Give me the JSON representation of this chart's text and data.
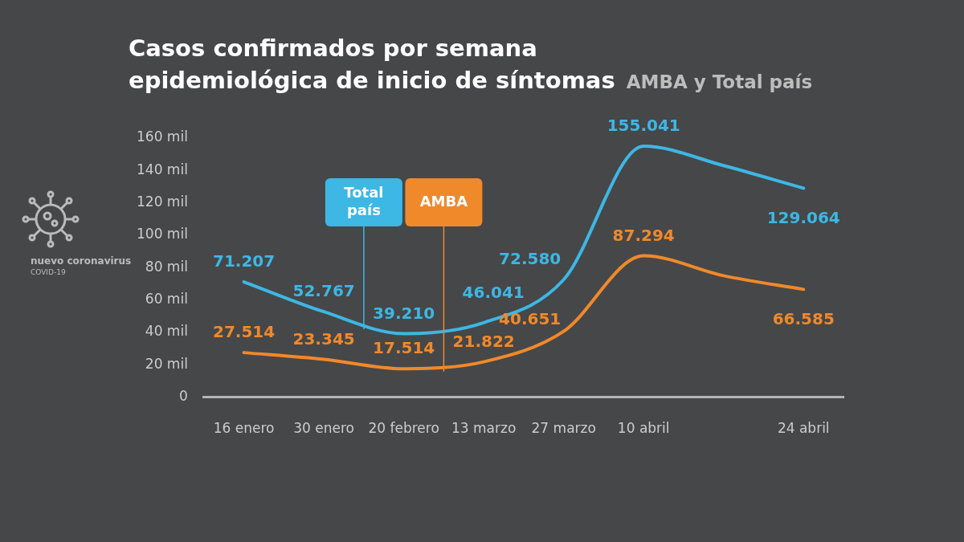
{
  "chart_data": {
    "type": "line",
    "title": "Casos confirmados por semana\nepidemiológica de inicio de síntomas",
    "subtitle": "AMBA y Total país",
    "categories": [
      "16 enero",
      "30 enero",
      "20 febrero",
      "13 marzo",
      "27 marzo",
      "10 abril",
      null,
      "24 abril"
    ],
    "series": [
      {
        "name": "Total país",
        "color": "#3db7e4",
        "values": [
          71.207,
          52.767,
          39.21,
          46.041,
          72.58,
          155.041,
          143,
          129.064
        ],
        "value_labels": [
          "71.207",
          "52.767",
          "39.210",
          "46.041",
          "72.580",
          "155.041",
          null,
          "129.064"
        ]
      },
      {
        "name": "AMBA",
        "color": "#f0892a",
        "values": [
          27.514,
          23.345,
          17.514,
          21.822,
          40.651,
          87.294,
          75,
          66.585
        ],
        "value_labels": [
          "27.514",
          "23.345",
          "17.514",
          "21.822",
          "40.651",
          "87.294",
          null,
          "66.585"
        ]
      }
    ],
    "ylim": [
      0,
      160
    ],
    "yticks": [
      0,
      {
        "value": 20,
        "label": "20 mil"
      },
      {
        "value": 40,
        "label": "40 mil"
      },
      {
        "value": 60,
        "label": "60 mil"
      },
      {
        "value": 80,
        "label": "80 mil"
      },
      {
        "value": 100,
        "label": "100 mil"
      },
      {
        "value": 120,
        "label": "120 mil"
      },
      {
        "value": 140,
        "label": "140 mil"
      },
      {
        "value": 160,
        "label": "160 mil"
      }
    ],
    "grid": false,
    "legend": false,
    "marker": "none",
    "line_style": "solid",
    "annotations": [
      "nuevo coronavirus",
      "COVID-19"
    ]
  }
}
